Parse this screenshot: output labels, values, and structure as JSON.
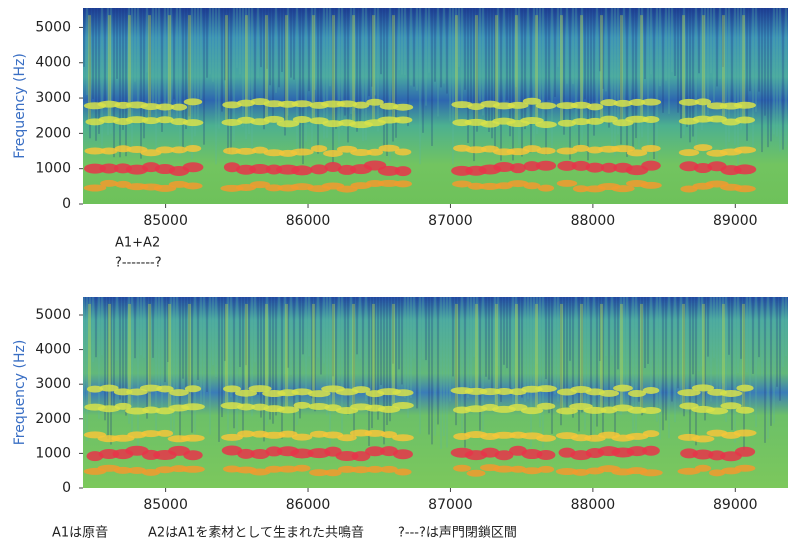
{
  "chart_data": [
    {
      "type": "spectrogram",
      "ylabel": "Frequency (Hz)",
      "xlim": [
        84420,
        89370
      ],
      "xticks": [
        85000,
        86000,
        87000,
        88000,
        89000
      ],
      "ylim": [
        0,
        5550
      ],
      "yticks": [
        0,
        1000,
        2000,
        3000,
        4000,
        5000
      ],
      "annotations": [
        "A1+A2",
        "?-------?"
      ]
    },
    {
      "type": "spectrogram",
      "ylabel": "Frequency (Hz)",
      "xlim": [
        84420,
        89370
      ],
      "xticks": [
        85000,
        86000,
        87000,
        88000,
        89000
      ],
      "ylim": [
        0,
        5520
      ],
      "yticks": [
        0,
        1000,
        2000,
        3000,
        4000,
        5000
      ],
      "annotations": [
        "A1は原音",
        "A2はA1を素材として生まれた共鳴音",
        "?---?は声門閉鎖区間"
      ]
    }
  ]
}
